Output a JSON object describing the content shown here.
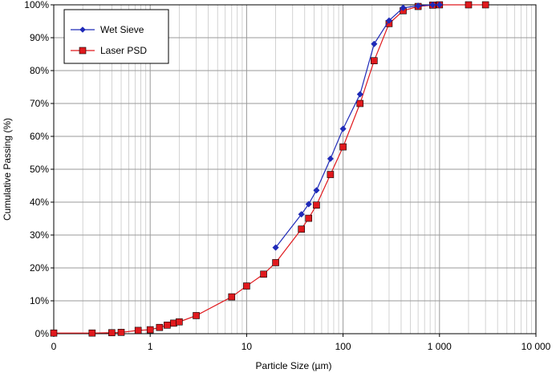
{
  "chart_data": {
    "type": "scatter",
    "xlabel": "Particle Size (µm)",
    "ylabel": "Cumulative Passing (%)",
    "x_scale": "log",
    "xlim": [
      0.1,
      10000
    ],
    "ylim": [
      0,
      100
    ],
    "x_ticks": [
      {
        "value": 0.1,
        "label": "0"
      },
      {
        "value": 1,
        "label": "1"
      },
      {
        "value": 10,
        "label": "10"
      },
      {
        "value": 100,
        "label": "100"
      },
      {
        "value": 1000,
        "label": "1 000"
      },
      {
        "value": 10000,
        "label": "10 000"
      }
    ],
    "y_ticks": [
      {
        "value": 0,
        "label": "0%"
      },
      {
        "value": 10,
        "label": "10%"
      },
      {
        "value": 20,
        "label": "20%"
      },
      {
        "value": 30,
        "label": "30%"
      },
      {
        "value": 40,
        "label": "40%"
      },
      {
        "value": 50,
        "label": "50%"
      },
      {
        "value": 60,
        "label": "60%"
      },
      {
        "value": 70,
        "label": "70%"
      },
      {
        "value": 80,
        "label": "80%"
      },
      {
        "value": 90,
        "label": "90%"
      },
      {
        "value": 100,
        "label": "100%"
      }
    ],
    "grid": true,
    "legend_position": "top-left",
    "series": [
      {
        "name": "Wet Sieve",
        "color": "#1f2ab8",
        "marker": "diamond",
        "points": [
          {
            "x": 20,
            "y": 26.2
          },
          {
            "x": 37,
            "y": 36.3
          },
          {
            "x": 44,
            "y": 39.4
          },
          {
            "x": 53,
            "y": 43.6
          },
          {
            "x": 74,
            "y": 53.2
          },
          {
            "x": 100,
            "y": 62.3
          },
          {
            "x": 150,
            "y": 72.8
          },
          {
            "x": 210,
            "y": 88.1
          },
          {
            "x": 300,
            "y": 95.2
          },
          {
            "x": 420,
            "y": 99.1
          },
          {
            "x": 600,
            "y": 99.7
          },
          {
            "x": 850,
            "y": 100
          },
          {
            "x": 1000,
            "y": 100
          }
        ]
      },
      {
        "name": "Laser PSD",
        "color": "#e0191d",
        "marker": "square",
        "points": [
          {
            "x": 0.1,
            "y": 0.2
          },
          {
            "x": 0.25,
            "y": 0.2
          },
          {
            "x": 0.4,
            "y": 0.3
          },
          {
            "x": 0.5,
            "y": 0.4
          },
          {
            "x": 0.75,
            "y": 1.0
          },
          {
            "x": 1.0,
            "y": 1.2
          },
          {
            "x": 1.25,
            "y": 1.9
          },
          {
            "x": 1.5,
            "y": 2.6
          },
          {
            "x": 1.75,
            "y": 3.2
          },
          {
            "x": 2.0,
            "y": 3.6
          },
          {
            "x": 3.0,
            "y": 5.5
          },
          {
            "x": 7.0,
            "y": 11.2
          },
          {
            "x": 10,
            "y": 14.5
          },
          {
            "x": 15,
            "y": 18.1
          },
          {
            "x": 20,
            "y": 21.6
          },
          {
            "x": 37,
            "y": 31.8
          },
          {
            "x": 44,
            "y": 35.1
          },
          {
            "x": 53,
            "y": 39.1
          },
          {
            "x": 74,
            "y": 48.4
          },
          {
            "x": 100,
            "y": 56.8
          },
          {
            "x": 150,
            "y": 70.0
          },
          {
            "x": 210,
            "y": 83.0
          },
          {
            "x": 300,
            "y": 94.3
          },
          {
            "x": 420,
            "y": 98.2
          },
          {
            "x": 600,
            "y": 99.5
          },
          {
            "x": 850,
            "y": 99.9
          },
          {
            "x": 1000,
            "y": 100
          },
          {
            "x": 2000,
            "y": 100
          },
          {
            "x": 3000,
            "y": 100
          }
        ]
      }
    ]
  }
}
